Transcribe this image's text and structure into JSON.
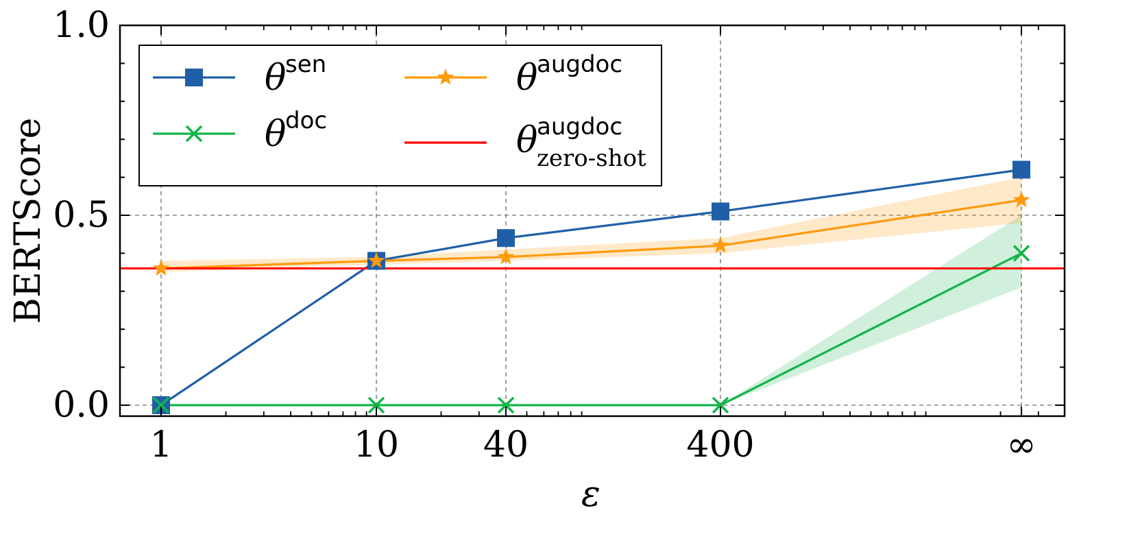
{
  "chart_data": {
    "type": "line",
    "xlabel": "ε",
    "ylabel": "BERTScore",
    "x_categories": [
      "1",
      "10",
      "40",
      "400",
      "∞"
    ],
    "x_scale": "log (∞ placed at right)",
    "ylim": [
      0.0,
      1.0
    ],
    "y_ticks": [
      "0.0",
      "0.5",
      "1.0"
    ],
    "grid": true,
    "legend_position": "top-left",
    "series": [
      {
        "name": "θ^sen",
        "theta": "θ",
        "sup": "sen",
        "sub": "",
        "color": "#1f5fa8",
        "marker": "square",
        "values": [
          0.0,
          0.38,
          0.44,
          0.51,
          0.62
        ]
      },
      {
        "name": "θ^doc",
        "theta": "θ",
        "sup": "doc",
        "sub": "",
        "color": "#12b54a",
        "marker": "x",
        "values": [
          0.0,
          0.0,
          0.0,
          0.0,
          0.4
        ],
        "band_low": [
          0.0,
          0.0,
          0.0,
          0.0,
          0.31
        ],
        "band_high": [
          0.0,
          0.0,
          0.0,
          0.0,
          0.5
        ]
      },
      {
        "name": "θ^augdoc",
        "theta": "θ",
        "sup": "augdoc",
        "sub": "",
        "color": "#ff9a0a",
        "marker": "star",
        "values": [
          0.36,
          0.38,
          0.39,
          0.42,
          0.54
        ],
        "band_low": [
          0.35,
          0.37,
          0.38,
          0.4,
          0.48
        ],
        "band_high": [
          0.38,
          0.39,
          0.41,
          0.44,
          0.6
        ]
      },
      {
        "name": "θ^augdoc_zero-shot",
        "theta": "θ",
        "sup": "augdoc",
        "sub": "zero-shot",
        "color": "#ff0000",
        "marker": "none",
        "constant": 0.36
      }
    ]
  }
}
